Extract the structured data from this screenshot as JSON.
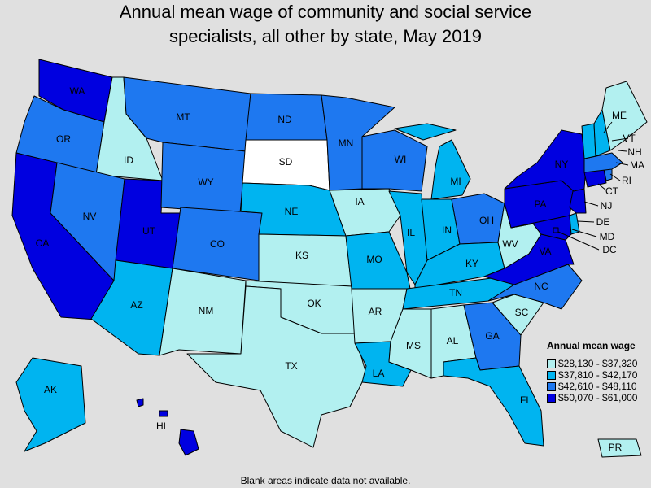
{
  "title": {
    "line1": "Annual mean wage of community and social service",
    "line2": "specialists, all other by state, May 2019"
  },
  "legend": {
    "title": "Annual mean wage",
    "bins": [
      {
        "label": "$28,130 - $37,320",
        "color": "#b2f0f0"
      },
      {
        "label": "$37,810 - $42,170",
        "color": "#00b4f0"
      },
      {
        "label": "$42,610 - $48,110",
        "color": "#1e78f0"
      },
      {
        "label": "$50,070 - $61,000",
        "color": "#0000e0"
      }
    ]
  },
  "no_data_color": "#ffffff",
  "footnote": "Blank areas indicate data not available.",
  "states": {
    "WA": 3,
    "OR": 2,
    "CA": 3,
    "ID": 0,
    "NV": 2,
    "UT": 3,
    "AZ": 1,
    "MT": 2,
    "WY": 2,
    "CO": 2,
    "NM": 0,
    "ND": 2,
    "SD": null,
    "NE": 1,
    "KS": 0,
    "OK": 0,
    "TX": 0,
    "MN": 2,
    "IA": 0,
    "MO": 1,
    "AR": 0,
    "LA": 1,
    "WI": 2,
    "IL": 1,
    "MI": 1,
    "IN": 1,
    "OH": 2,
    "KY": 1,
    "TN": 1,
    "MS": 0,
    "AL": 0,
    "GA": 2,
    "FL": 1,
    "SC": 0,
    "NC": 2,
    "VA": 3,
    "WV": 0,
    "MD": 3,
    "DE": 1,
    "DC": 3,
    "PA": 3,
    "NJ": 3,
    "NY": 3,
    "CT": 3,
    "RI": 2,
    "MA": 2,
    "VT": 1,
    "NH": 1,
    "ME": 0,
    "AK": 1,
    "HI": 3,
    "PR": 0
  },
  "state_labels": [
    "WA",
    "OR",
    "CA",
    "ID",
    "NV",
    "UT",
    "AZ",
    "MT",
    "WY",
    "CO",
    "NM",
    "ND",
    "SD",
    "NE",
    "KS",
    "OK",
    "TX",
    "MN",
    "IA",
    "MO",
    "AR",
    "LA",
    "WI",
    "IL",
    "MI",
    "IN",
    "OH",
    "KY",
    "TN",
    "MS",
    "AL",
    "GA",
    "FL",
    "SC",
    "NC",
    "VA",
    "WV",
    "MD",
    "DE",
    "DC",
    "PA",
    "NJ",
    "NY",
    "CT",
    "RI",
    "MA",
    "VT",
    "NH",
    "ME",
    "AK",
    "HI",
    "PR"
  ]
}
